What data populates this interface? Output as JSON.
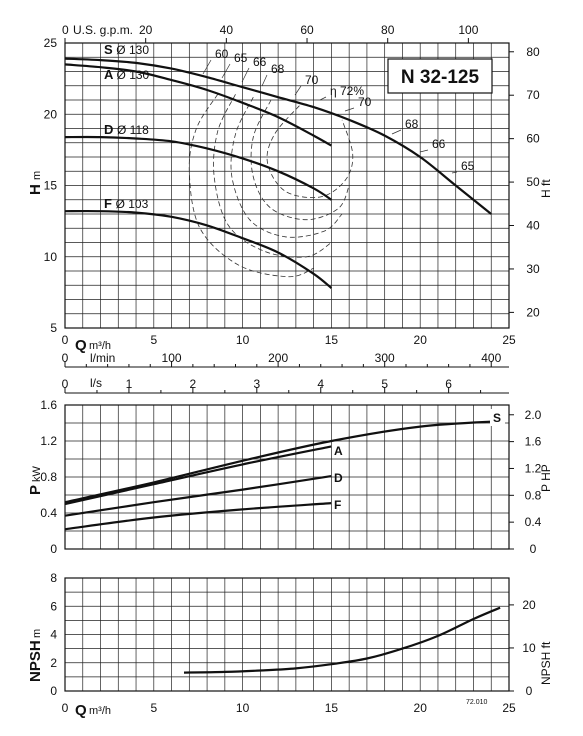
{
  "chart_data": [
    {
      "type": "line",
      "title": "N 32-125",
      "ylabel": "H",
      "ylabel_unit": "m",
      "y2label": "H ft",
      "xlabel": "Q",
      "xlabel_unit": "m³/h",
      "xlim": [
        0,
        25
      ],
      "ylim": [
        5,
        25
      ],
      "y2lim_ft": [
        16.4,
        82.0
      ],
      "xticks": [
        "0",
        "5",
        "10",
        "15",
        "20",
        "25"
      ],
      "yticks": [
        "5",
        "10",
        "15",
        "20",
        "25"
      ],
      "y2ticks": [
        "20",
        "30",
        "40",
        "50",
        "60",
        "70",
        "80"
      ],
      "top_axis": {
        "label": "U.S. g.p.m.",
        "ticks": [
          "0",
          "20",
          "40",
          "60",
          "80",
          "100"
        ]
      },
      "lmin_axis": {
        "label": "l/min",
        "ticks": [
          "0",
          "100",
          "200",
          "300",
          "400"
        ]
      },
      "ls_axis": {
        "label": "l/s",
        "ticks": [
          "0",
          "1",
          "2",
          "3",
          "4",
          "5",
          "6"
        ]
      },
      "series": [
        {
          "name": "S",
          "impeller": "Ø 130",
          "x": [
            0,
            2,
            4,
            6,
            8,
            10,
            12,
            14,
            16,
            18,
            20,
            22,
            24
          ],
          "y": [
            23.9,
            23.8,
            23.6,
            23.2,
            22.6,
            21.9,
            21.2,
            20.5,
            19.6,
            18.5,
            17.0,
            15.0,
            13.0
          ]
        },
        {
          "name": "A",
          "impeller": "Ø 130",
          "x": [
            0,
            2,
            4,
            6,
            8,
            10,
            12,
            14,
            15
          ],
          "y": [
            23.5,
            23.3,
            23.0,
            22.4,
            21.7,
            20.8,
            19.8,
            18.5,
            17.8
          ]
        },
        {
          "name": "D",
          "impeller": "Ø 118",
          "x": [
            0,
            2,
            4,
            6,
            8,
            10,
            12,
            14,
            15
          ],
          "y": [
            18.4,
            18.4,
            18.3,
            18.1,
            17.6,
            16.9,
            16.0,
            14.8,
            14.0
          ]
        },
        {
          "name": "F",
          "impeller": "Ø 103",
          "x": [
            0,
            2,
            4,
            6,
            8,
            10,
            12,
            14,
            15
          ],
          "y": [
            13.2,
            13.2,
            13.1,
            12.8,
            12.2,
            11.3,
            10.3,
            8.8,
            7.8
          ]
        }
      ],
      "efficiency_labels": [
        "60",
        "65",
        "66",
        "68",
        "70",
        "η 72%",
        "70",
        "68",
        "66",
        "65"
      ]
    },
    {
      "type": "line",
      "ylabel": "P",
      "ylabel_unit": "kW",
      "y2label": "P HP",
      "xlim": [
        0,
        25
      ],
      "ylim": [
        0,
        1.6
      ],
      "yticks": [
        "0",
        "0.4",
        "0.8",
        "1.2",
        "1.6"
      ],
      "y2ticks": [
        "0",
        "0.4",
        "0.8",
        "1.2",
        "1.6",
        "2.0"
      ],
      "series": [
        {
          "name": "S",
          "x": [
            0,
            5,
            10,
            15,
            20,
            24.5
          ],
          "y": [
            0.52,
            0.74,
            0.98,
            1.2,
            1.36,
            1.42
          ]
        },
        {
          "name": "A",
          "x": [
            0,
            5,
            10,
            15
          ],
          "y": [
            0.5,
            0.72,
            0.94,
            1.14
          ]
        },
        {
          "name": "D",
          "x": [
            0,
            5,
            10,
            15
          ],
          "y": [
            0.37,
            0.52,
            0.66,
            0.81
          ]
        },
        {
          "name": "F",
          "x": [
            0,
            5,
            10,
            15
          ],
          "y": [
            0.22,
            0.35,
            0.44,
            0.51
          ]
        }
      ]
    },
    {
      "type": "line",
      "ylabel": "NPSH",
      "ylabel_unit": "m",
      "y2label": "NPSH ft",
      "xlabel": "Q",
      "xlabel_unit": "m³/h",
      "xlim": [
        0,
        25
      ],
      "ylim": [
        0,
        8
      ],
      "xticks": [
        "0",
        "5",
        "10",
        "15",
        "20",
        "25"
      ],
      "yticks": [
        "0",
        "2",
        "4",
        "6",
        "8"
      ],
      "y2ticks": [
        "0",
        "10",
        "20"
      ],
      "series": [
        {
          "name": "",
          "x": [
            6.7,
            9,
            11,
            13,
            15,
            17,
            19,
            21,
            23,
            24.5
          ],
          "y": [
            1.3,
            1.35,
            1.45,
            1.6,
            1.9,
            2.3,
            3.0,
            3.9,
            5.1,
            5.9
          ]
        }
      ],
      "code": "72.010"
    }
  ]
}
